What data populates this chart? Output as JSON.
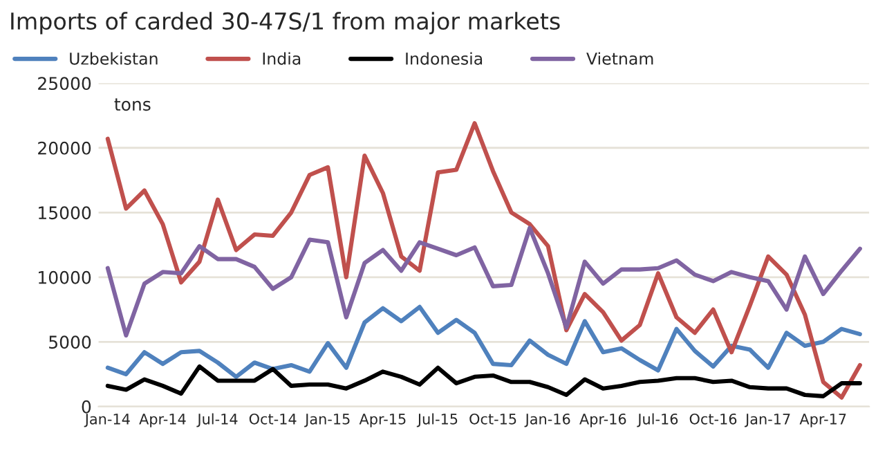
{
  "chart_data": {
    "type": "line",
    "title": "Imports of carded 30-47S/1 from major markets",
    "ylabel": "tons",
    "categories": [
      "Jan-14",
      null,
      null,
      "Apr-14",
      null,
      null,
      "Jul-14",
      null,
      null,
      "Oct-14",
      null,
      null,
      "Jan-15",
      null,
      null,
      "Apr-15",
      null,
      null,
      "Jul-15",
      null,
      null,
      "Oct-15",
      null,
      null,
      "Jan-16",
      null,
      null,
      "Apr-16",
      null,
      null,
      "Jul-16",
      null,
      null,
      "Oct-16",
      null,
      null,
      "Jan-17",
      null,
      null,
      "Apr-17",
      null,
      null
    ],
    "series": [
      {
        "name": "Uzbekistan",
        "color": "#4f81bd",
        "values": [
          3000,
          2500,
          4200,
          3300,
          4200,
          4300,
          3400,
          2300,
          3400,
          2900,
          3200,
          2700,
          4900,
          3000,
          6500,
          7600,
          6600,
          7700,
          5700,
          6700,
          5700,
          3300,
          3200,
          5100,
          4000,
          3300,
          6600,
          4200,
          4500,
          3600,
          2800,
          6000,
          4300,
          3100,
          4700,
          4400,
          3000,
          5700,
          4700,
          5000,
          6000,
          5600
        ]
      },
      {
        "name": "India",
        "color": "#c0504d",
        "values": [
          20700,
          15300,
          16700,
          14100,
          9600,
          11200,
          16000,
          12100,
          13300,
          13200,
          15000,
          17900,
          18500,
          10000,
          19400,
          16500,
          11600,
          10500,
          18100,
          18300,
          21900,
          18200,
          15000,
          14100,
          12400,
          5900,
          8700,
          7300,
          5100,
          6300,
          10300,
          6900,
          5700,
          7500,
          4200,
          7800,
          11600,
          10200,
          7100,
          1900,
          700,
          3200
        ]
      },
      {
        "name": "Indonesia",
        "color": "#000000",
        "values": [
          1600,
          1300,
          2100,
          1600,
          1000,
          3100,
          2000,
          2000,
          2000,
          2900,
          1600,
          1700,
          1700,
          1400,
          2000,
          2700,
          2300,
          1700,
          3000,
          1800,
          2300,
          2400,
          1900,
          1900,
          1500,
          900,
          2100,
          1400,
          1600,
          1900,
          2000,
          2200,
          2200,
          1900,
          2000,
          1500,
          1400,
          1400,
          900,
          800,
          1800,
          1800
        ]
      },
      {
        "name": "Vietnam",
        "color": "#8064a2",
        "values": [
          10700,
          5500,
          9500,
          10400,
          10300,
          12400,
          11400,
          11400,
          10800,
          9100,
          10000,
          12900,
          12700,
          6900,
          11100,
          12100,
          10500,
          12700,
          12200,
          11700,
          12300,
          9300,
          9400,
          13800,
          10300,
          6100,
          11200,
          9500,
          10600,
          10600,
          10700,
          11300,
          10200,
          9700,
          10400,
          10000,
          9700,
          7500,
          11600,
          8700,
          10500,
          12200
        ]
      }
    ],
    "ylim": [
      0,
      25000
    ],
    "yticks": [
      0,
      5000,
      10000,
      15000,
      20000,
      25000
    ],
    "grid": "y",
    "legend": "top",
    "marker": "none",
    "line_style": "solid"
  }
}
